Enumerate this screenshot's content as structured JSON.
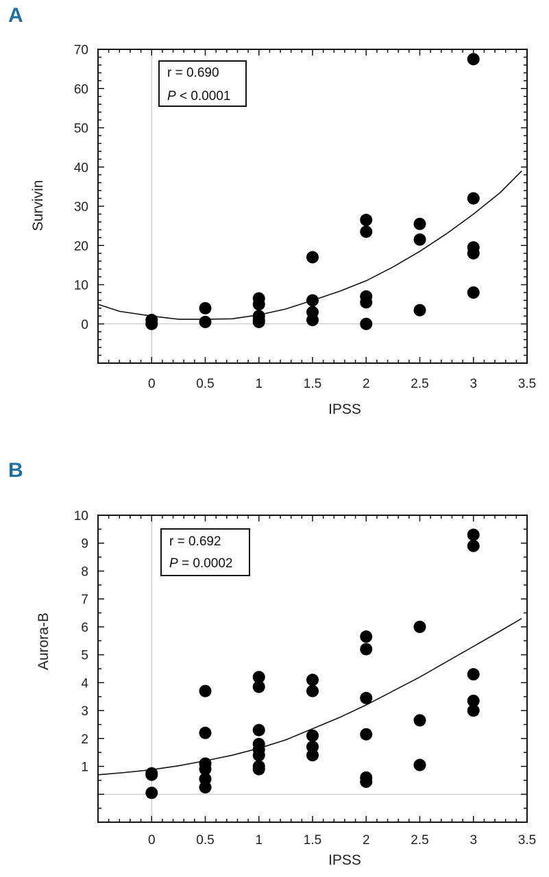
{
  "chart_data": [
    {
      "panel_label": "A",
      "type": "scatter",
      "xlabel": "IPSS",
      "ylabel": "Survivin",
      "xlim": [
        -0.5,
        3.5
      ],
      "ylim": [
        -10,
        70
      ],
      "x_ticks": [
        "0",
        "0.5",
        "1",
        "1.5",
        "2",
        "2.5",
        "3",
        "3.5"
      ],
      "y_ticks": [
        "0",
        "10",
        "20",
        "30",
        "40",
        "50",
        "60",
        "70"
      ],
      "stats": {
        "r": "r = 0.690",
        "p_italic": "P",
        "p_rest": " < 0.0001"
      },
      "points": [
        [
          0,
          1
        ],
        [
          0,
          0
        ],
        [
          0.5,
          4
        ],
        [
          0.5,
          0.5
        ],
        [
          1,
          6.5
        ],
        [
          1,
          5
        ],
        [
          1,
          2
        ],
        [
          1,
          1
        ],
        [
          1,
          0.5
        ],
        [
          1.5,
          17
        ],
        [
          1.5,
          6
        ],
        [
          1.5,
          3
        ],
        [
          1.5,
          1
        ],
        [
          2,
          26.5
        ],
        [
          2,
          23.5
        ],
        [
          2,
          7
        ],
        [
          2,
          5.5
        ],
        [
          2,
          0
        ],
        [
          2.5,
          25.5
        ],
        [
          2.5,
          21.5
        ],
        [
          2.5,
          3.5
        ],
        [
          3,
          67.5
        ],
        [
          3,
          32
        ],
        [
          3,
          19.5
        ],
        [
          3,
          18
        ],
        [
          3,
          8
        ]
      ],
      "fit_curve": [
        [
          -0.5,
          5
        ],
        [
          -0.3,
          3.2
        ],
        [
          0,
          2
        ],
        [
          0.25,
          1.2
        ],
        [
          0.5,
          1.2
        ],
        [
          0.75,
          1.3
        ],
        [
          1,
          2.3
        ],
        [
          1.25,
          3.8
        ],
        [
          1.5,
          6
        ],
        [
          1.75,
          8.3
        ],
        [
          2,
          11
        ],
        [
          2.25,
          14.5
        ],
        [
          2.5,
          18.5
        ],
        [
          2.75,
          23
        ],
        [
          3,
          28
        ],
        [
          3.25,
          33.5
        ],
        [
          3.45,
          39
        ]
      ]
    },
    {
      "panel_label": "B",
      "type": "scatter",
      "xlabel": "IPSS",
      "ylabel": "Aurora-B",
      "xlim": [
        -0.5,
        3.5
      ],
      "ylim": [
        -1,
        10
      ],
      "x_ticks": [
        "0",
        "0.5",
        "1",
        "1.5",
        "2",
        "2.5",
        "3",
        "3.5"
      ],
      "y_ticks": [
        "1",
        "2",
        "3",
        "4",
        "5",
        "6",
        "7",
        "8",
        "9",
        "10"
      ],
      "stats": {
        "r": "r = 0.692",
        "p_italic": "P",
        "p_rest": " = 0.0002"
      },
      "points": [
        [
          0,
          0.75
        ],
        [
          0,
          0.7
        ],
        [
          0,
          0.05
        ],
        [
          0.5,
          3.7
        ],
        [
          0.5,
          2.2
        ],
        [
          0.5,
          1.1
        ],
        [
          0.5,
          0.9
        ],
        [
          0.5,
          0.55
        ],
        [
          0.5,
          0.25
        ],
        [
          1,
          4.2
        ],
        [
          1,
          3.85
        ],
        [
          1,
          2.3
        ],
        [
          1,
          1.8
        ],
        [
          1,
          1.6
        ],
        [
          1,
          1.4
        ],
        [
          1,
          1.0
        ],
        [
          1,
          0.9
        ],
        [
          1.5,
          4.1
        ],
        [
          1.5,
          3.7
        ],
        [
          1.5,
          2.1
        ],
        [
          1.5,
          1.7
        ],
        [
          1.5,
          1.4
        ],
        [
          2,
          5.65
        ],
        [
          2,
          5.2
        ],
        [
          2,
          3.45
        ],
        [
          2,
          2.15
        ],
        [
          2,
          0.6
        ],
        [
          2,
          0.45
        ],
        [
          2.5,
          6.0
        ],
        [
          2.5,
          2.65
        ],
        [
          2.5,
          1.05
        ],
        [
          3,
          9.3
        ],
        [
          3,
          8.9
        ],
        [
          3,
          4.3
        ],
        [
          3,
          3.35
        ],
        [
          3,
          3.0
        ]
      ],
      "fit_curve": [
        [
          -0.5,
          0.7
        ],
        [
          -0.25,
          0.78
        ],
        [
          0,
          0.88
        ],
        [
          0.25,
          1.02
        ],
        [
          0.5,
          1.2
        ],
        [
          0.75,
          1.4
        ],
        [
          1,
          1.65
        ],
        [
          1.25,
          1.95
        ],
        [
          1.5,
          2.35
        ],
        [
          1.75,
          2.75
        ],
        [
          2,
          3.2
        ],
        [
          2.25,
          3.7
        ],
        [
          2.5,
          4.2
        ],
        [
          2.75,
          4.75
        ],
        [
          3,
          5.3
        ],
        [
          3.25,
          5.85
        ],
        [
          3.45,
          6.3
        ]
      ]
    }
  ]
}
